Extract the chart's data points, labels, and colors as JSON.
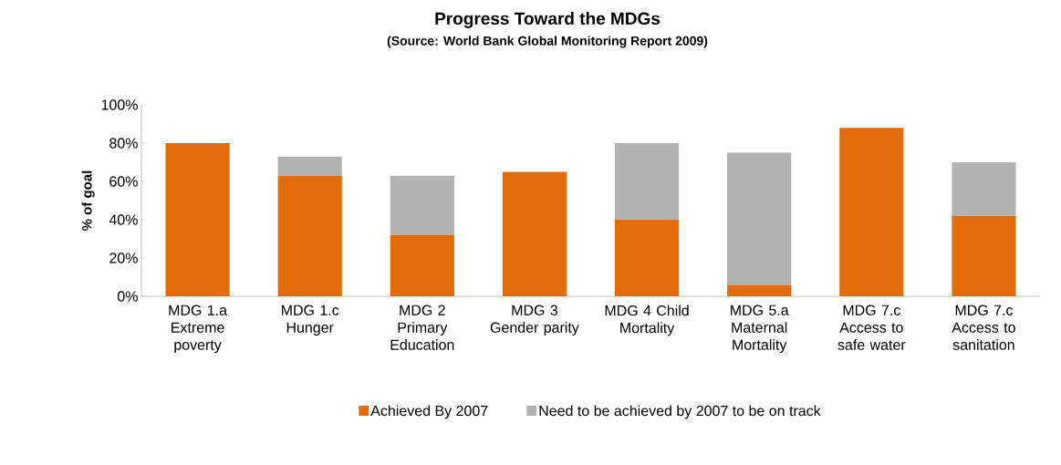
{
  "chart_data": {
    "type": "bar",
    "stacked": true,
    "title": "Progress Toward the MDGs",
    "subtitle": "(Source: World Bank Global Monitoring Report 2009)",
    "ylabel": "% of goal",
    "categories": [
      "MDG 1.a Extreme poverty",
      "MDG 1.c Hunger",
      "MDG 2 Primary Education",
      "MDG 3 Gender parity",
      "MDG 4 Child Mortality",
      "MDG 5.a Maternal Mortality",
      "MDG 7.c Access to safe water",
      "MDG 7.c Access to sanitation"
    ],
    "series": [
      {
        "name": "Achieved By 2007",
        "color": "#e36c0a",
        "values": [
          80,
          63,
          32,
          65,
          40,
          6,
          88,
          42
        ]
      },
      {
        "name": "Need to be achieved by 2007 to be on track",
        "color": "#b2b2b2",
        "values": [
          0,
          10,
          31,
          0,
          40,
          69,
          0,
          28
        ]
      }
    ],
    "ylim": [
      0,
      100
    ],
    "yticks": [
      {
        "value": 0,
        "label": "0%"
      },
      {
        "value": 20,
        "label": "20%"
      },
      {
        "value": 40,
        "label": "40%"
      },
      {
        "value": 60,
        "label": "60%"
      },
      {
        "value": 80,
        "label": "80%"
      },
      {
        "value": 100,
        "label": "100%"
      }
    ],
    "grid": false,
    "legend": "bottom"
  }
}
